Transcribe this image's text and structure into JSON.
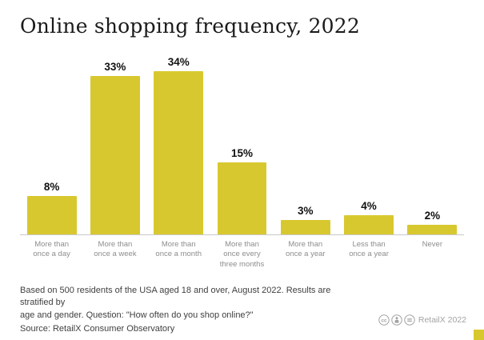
{
  "title": "Online shopping frequency, 2022",
  "chart_data": {
    "type": "bar",
    "title": "Online shopping frequency, 2022",
    "categories": [
      "More than\nonce a day",
      "More than\nonce a week",
      "More than\nonce a month",
      "More than\nonce every\nthree months",
      "More than\nonce a year",
      "Less than\nonce a year",
      "Never"
    ],
    "values": [
      8,
      33,
      34,
      15,
      3,
      4,
      2
    ],
    "value_labels": [
      "8%",
      "33%",
      "34%",
      "15%",
      "3%",
      "4%",
      "2%"
    ],
    "xlabel": "",
    "ylabel": "",
    "ylim": [
      0,
      35
    ],
    "grid": false,
    "legend": "none",
    "bar_color": "#d8c82f"
  },
  "footer": {
    "line1": "Based on 500 residents of the USA aged 18 and over, August 2022. Results are stratified by",
    "line2": "age and gender. Question: \"How often do you shop online?\"",
    "line3": "Source: RetailX Consumer Observatory",
    "credit": "RetailX 2022"
  },
  "colors": {
    "bar": "#d8c82f",
    "axis_line": "#c9c9c9",
    "tick_text": "#8d8d8d",
    "title_text": "#1a1a1a",
    "footer_text": "#3f3f3f",
    "credit_text": "#a3a3a3",
    "corner_square": "#d8c82f"
  },
  "license_icons": [
    "cc-icon",
    "attribution-icon",
    "nd-icon"
  ]
}
